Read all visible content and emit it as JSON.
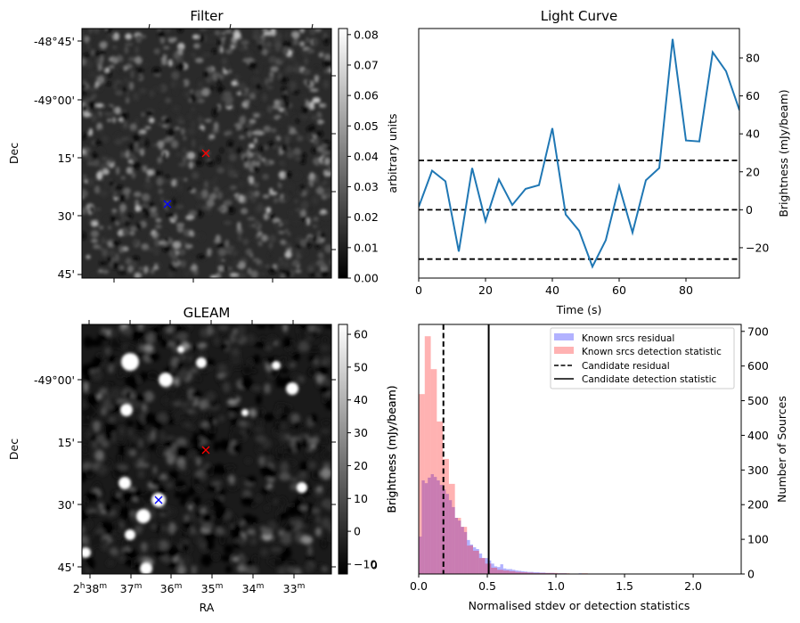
{
  "figure": {
    "panels": {
      "filter": {
        "title": "Filter",
        "ylabel": "Dec",
        "dec_ticks": [
          "-48°45'",
          "-49°00'",
          "15'",
          "30'",
          "45'"
        ],
        "colorbar": {
          "label": "arbitrary units",
          "ticks": [
            "0.00",
            "0.01",
            "0.02",
            "0.03",
            "0.04",
            "0.05",
            "0.06",
            "0.07",
            "0.08"
          ],
          "range": [
            0.0,
            0.082
          ]
        },
        "markers": [
          {
            "name": "candidate",
            "color": "#ff0000",
            "symbol": "x"
          },
          {
            "name": "reference-source",
            "color": "#0000ff",
            "symbol": "x"
          }
        ]
      },
      "gleam": {
        "title": "GLEAM",
        "ylabel": "Dec",
        "xlabel": "RA",
        "dec_ticks": [
          "-49°00'",
          "15'",
          "30'",
          "45'"
        ],
        "ra_ticks": [
          {
            "main": "2",
            "sup1": "h",
            "main2": "38",
            "sup2": "m"
          },
          {
            "main": "37",
            "sup": "m"
          },
          {
            "main": "36",
            "sup": "m"
          },
          {
            "main": "35",
            "sup": "m"
          },
          {
            "main": "34",
            "sup": "m"
          },
          {
            "main": "33",
            "sup": "m"
          }
        ],
        "colorbar": {
          "label": "Brightness (mJy/beam)",
          "ticks": [
            "−10",
            "0",
            "10",
            "20",
            "30",
            "40",
            "50",
            "60"
          ],
          "range": [
            -13,
            63
          ]
        },
        "markers": [
          {
            "name": "candidate",
            "color": "#ff0000",
            "symbol": "x"
          },
          {
            "name": "reference-source",
            "color": "#0000ff",
            "symbol": "x"
          }
        ]
      }
    }
  },
  "chart_data": [
    {
      "type": "line",
      "title": "Light Curve",
      "xlabel": "Time (s)",
      "ylabel": "Brightness (mJy/beam)",
      "left_ylabel": "arbitrary units",
      "xlim": [
        0,
        96
      ],
      "ylim": [
        -36,
        95.5
      ],
      "x_ticks": [
        "0",
        "20",
        "40",
        "60",
        "80"
      ],
      "x_tick_values": [
        0,
        20,
        40,
        60,
        80
      ],
      "y_ticks": [
        "−20",
        "0",
        "20",
        "40",
        "60",
        "80"
      ],
      "y_tick_values": [
        -20,
        0,
        20,
        40,
        60,
        80
      ],
      "grid": false,
      "series": [
        {
          "name": "light-curve",
          "color": "#1f77b4",
          "x": [
            0,
            4,
            8,
            12,
            16,
            20,
            24,
            28,
            32,
            36,
            40,
            44,
            48,
            52,
            56,
            60,
            64,
            68,
            72,
            76,
            80,
            84,
            88,
            92,
            96
          ],
          "y": [
            1.5,
            20.6,
            15,
            -22,
            22,
            -6,
            16,
            2.5,
            11,
            13,
            43,
            -2.5,
            -11,
            -30,
            -16,
            12.5,
            -12,
            15.5,
            22,
            90,
            36.5,
            36,
            83,
            73,
            52.5
          ]
        }
      ],
      "hlines": [
        {
          "name": "upper-threshold",
          "value": 26,
          "style": "dashed",
          "color": "#000000"
        },
        {
          "name": "mean",
          "value": 0,
          "style": "dashed",
          "color": "#000000"
        },
        {
          "name": "lower-threshold",
          "value": -26,
          "style": "dashed",
          "color": "#000000"
        }
      ]
    },
    {
      "type": "bar",
      "subtype": "histogram",
      "xlabel": "Normalised stdev or detection statistics",
      "ylabel": "Number of Sources",
      "left_ylabel": "Brightness (mJy/beam)",
      "left_tick_partial": "0",
      "xlim": [
        0,
        2.35
      ],
      "ylim": [
        0,
        720
      ],
      "x_ticks": [
        "0.0",
        "0.5",
        "1.0",
        "1.5",
        "2.0"
      ],
      "x_tick_values": [
        0,
        0.5,
        1.0,
        1.5,
        2.0
      ],
      "y_ticks": [
        "0",
        "100",
        "200",
        "300",
        "400",
        "500",
        "600",
        "700"
      ],
      "y_tick_values": [
        0,
        100,
        200,
        300,
        400,
        500,
        600,
        700
      ],
      "legend_position": "top-right",
      "series": [
        {
          "name": "Known srcs residual",
          "color": "#0000ff",
          "alpha": 0.3,
          "bin_start": 0.0,
          "bin_width": 0.022,
          "counts": [
            108,
            270,
            262,
            278,
            288,
            280,
            270,
            257,
            244,
            231,
            213,
            193,
            162,
            154,
            136,
            121,
            98,
            85,
            77,
            72,
            59,
            46,
            46,
            39,
            30,
            22,
            20,
            28,
            16,
            14,
            14,
            12,
            10,
            9,
            8,
            7,
            6,
            6,
            5,
            5,
            4,
            4,
            3,
            3,
            3,
            2,
            2,
            2,
            2,
            1,
            1,
            1,
            1,
            2,
            1,
            1,
            1,
            1,
            0,
            0,
            1,
            0,
            0,
            1,
            0,
            0,
            0,
            0,
            0,
            0,
            0,
            0,
            0,
            0,
            0,
            0,
            0,
            0,
            0,
            0,
            0,
            0,
            0,
            0,
            0,
            0,
            0,
            0,
            0,
            0,
            0,
            0,
            0,
            0,
            0,
            0,
            0,
            0,
            0,
            0,
            0,
            0
          ]
        },
        {
          "name": "Known srcs detection statistic",
          "color": "#ff0000",
          "alpha": 0.3,
          "bin_start": 0.0,
          "bin_width": 0.044,
          "counts": [
            519,
            686,
            591,
            440,
            332,
            260,
            162,
            136,
            82,
            67,
            46,
            30,
            18,
            12,
            10,
            8,
            6,
            5,
            4,
            3,
            3,
            3,
            3,
            2,
            2,
            1,
            1,
            2,
            1,
            1,
            1,
            1,
            1,
            1,
            1,
            1,
            1,
            0,
            0,
            1,
            0,
            0,
            0,
            0,
            0,
            0,
            0,
            0,
            0,
            0,
            1
          ]
        }
      ],
      "vlines": [
        {
          "name": "Candidate residual",
          "value": 0.18,
          "style": "dashed",
          "color": "#000000"
        },
        {
          "name": "Candidate detection statistic",
          "value": 0.51,
          "style": "solid",
          "color": "#000000"
        }
      ]
    }
  ]
}
